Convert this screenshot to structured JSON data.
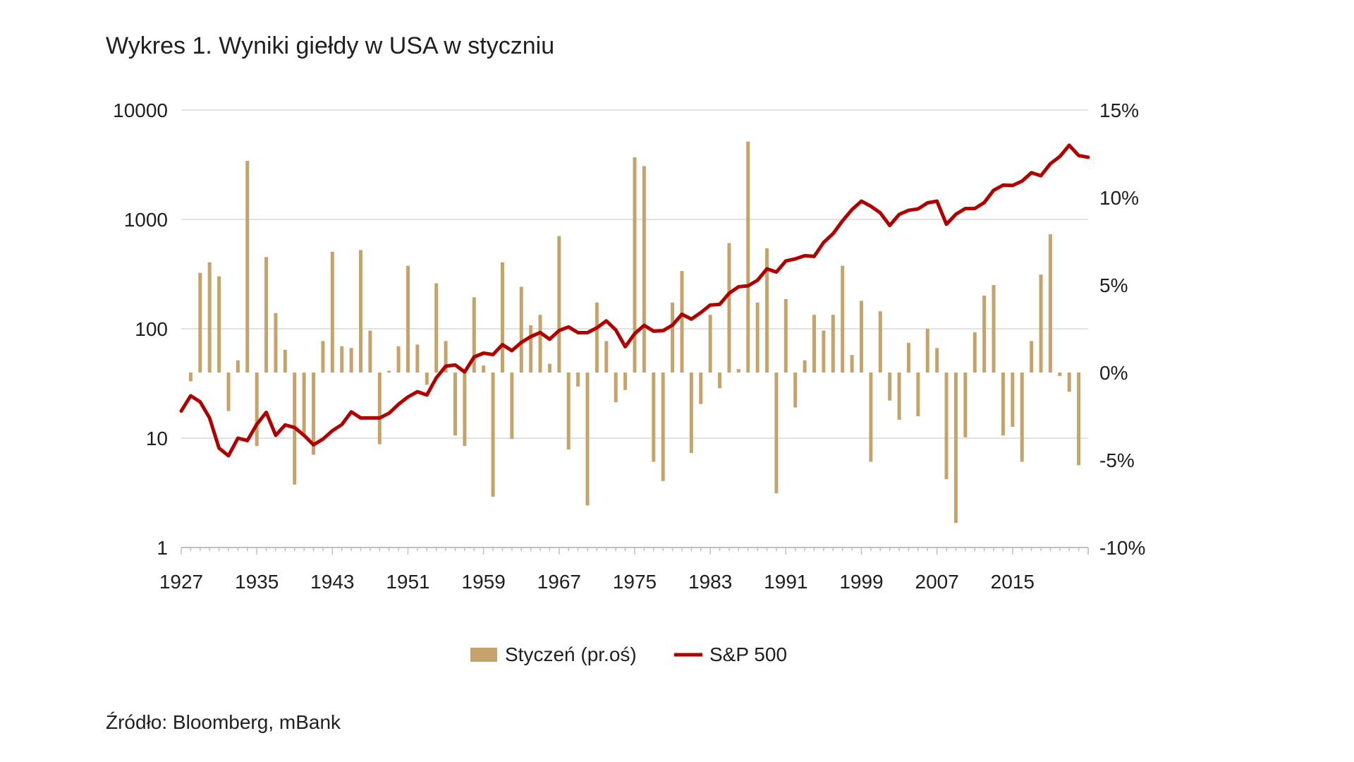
{
  "title": "Wykres 1. Wyniki giełdy w USA w styczniu",
  "source": "Źródło: Bloomberg, mBank",
  "colors": {
    "bars": "#C6A36A",
    "line": "#B00000",
    "grid": "#D9D9D9",
    "axis": "#BFBFBF"
  },
  "chart_data": {
    "type": "bar+line",
    "x_tick_labels": [
      "1927",
      "1935",
      "1943",
      "1951",
      "1959",
      "1967",
      "1975",
      "1983",
      "1991",
      "1999",
      "2007",
      "2015"
    ],
    "left_axis": {
      "scale": "log",
      "ylim": [
        1,
        10000
      ],
      "tick_labels": [
        "1",
        "10",
        "100",
        "1000",
        "10000"
      ],
      "tick_values": [
        1,
        10,
        100,
        1000,
        10000
      ]
    },
    "right_axis": {
      "scale": "linear",
      "ylim": [
        -10,
        15
      ],
      "tick_labels": [
        "-10%",
        "-5%",
        "0%",
        "5%",
        "10%",
        "15%"
      ],
      "tick_values": [
        -10,
        -5,
        0,
        5,
        10,
        15
      ]
    },
    "series": [
      {
        "name": "Styczeń (pr.oś)",
        "type": "bar",
        "axis": "right",
        "years": [
          1928,
          1929,
          1930,
          1931,
          1932,
          1933,
          1934,
          1935,
          1936,
          1937,
          1938,
          1939,
          1940,
          1941,
          1942,
          1943,
          1944,
          1945,
          1946,
          1947,
          1948,
          1949,
          1950,
          1951,
          1952,
          1953,
          1954,
          1955,
          1956,
          1957,
          1958,
          1959,
          1960,
          1961,
          1962,
          1963,
          1964,
          1965,
          1966,
          1967,
          1968,
          1969,
          1970,
          1971,
          1972,
          1973,
          1974,
          1975,
          1976,
          1977,
          1978,
          1979,
          1980,
          1981,
          1982,
          1983,
          1984,
          1985,
          1986,
          1987,
          1988,
          1989,
          1990,
          1991,
          1992,
          1993,
          1994,
          1995,
          1996,
          1997,
          1998,
          1999,
          2000,
          2001,
          2002,
          2003,
          2004,
          2005,
          2006,
          2007,
          2008,
          2009,
          2010,
          2011,
          2012,
          2013,
          2014,
          2015,
          2016,
          2017,
          2018,
          2019,
          2020,
          2021,
          2022
        ],
        "values": [
          -0.5,
          5.7,
          6.3,
          5.5,
          -2.2,
          0.7,
          12.1,
          -4.2,
          6.6,
          3.4,
          1.3,
          -6.4,
          -3.5,
          -4.7,
          1.8,
          6.9,
          1.5,
          1.4,
          7.0,
          2.4,
          -4.1,
          0.1,
          1.5,
          6.1,
          1.6,
          -0.7,
          5.1,
          1.8,
          -3.6,
          -4.2,
          4.3,
          0.4,
          -7.1,
          6.3,
          -3.8,
          4.9,
          2.7,
          3.3,
          0.5,
          7.8,
          -4.4,
          -0.8,
          -7.6,
          4.0,
          1.8,
          -1.7,
          -1.0,
          12.3,
          11.8,
          -5.1,
          -6.2,
          4.0,
          5.8,
          -4.6,
          -1.8,
          3.3,
          -0.9,
          7.4,
          0.2,
          13.2,
          4.0,
          7.1,
          -6.9,
          4.2,
          -2.0,
          0.7,
          3.3,
          2.4,
          3.3,
          6.1,
          1.0,
          4.1,
          -5.1,
          3.5,
          -1.6,
          -2.7,
          1.7,
          -2.5,
          2.5,
          1.4,
          -6.1,
          -8.6,
          -3.7,
          2.3,
          4.4,
          5.0,
          -3.6,
          -3.1,
          -5.1,
          1.8,
          5.6,
          7.9,
          -0.2,
          -1.1,
          -5.3
        ]
      },
      {
        "name": "S&P 500",
        "type": "line",
        "axis": "left",
        "years": [
          1927,
          1928,
          1929,
          1930,
          1931,
          1932,
          1933,
          1934,
          1935,
          1936,
          1937,
          1938,
          1939,
          1940,
          1941,
          1942,
          1943,
          1944,
          1945,
          1946,
          1947,
          1948,
          1949,
          1950,
          1951,
          1952,
          1953,
          1954,
          1955,
          1956,
          1957,
          1958,
          1959,
          1960,
          1961,
          1962,
          1963,
          1964,
          1965,
          1966,
          1967,
          1968,
          1969,
          1970,
          1971,
          1972,
          1973,
          1974,
          1975,
          1976,
          1977,
          1978,
          1979,
          1980,
          1981,
          1982,
          1983,
          1984,
          1985,
          1986,
          1987,
          1988,
          1989,
          1990,
          1991,
          1992,
          1993,
          1994,
          1995,
          1996,
          1997,
          1998,
          1999,
          2000,
          2001,
          2002,
          2003,
          2004,
          2005,
          2006,
          2007,
          2008,
          2009,
          2010,
          2011,
          2012,
          2013,
          2014,
          2015,
          2016,
          2017,
          2018,
          2019,
          2020,
          2021,
          2022,
          2023
        ],
        "values": [
          17.7,
          24.4,
          21.5,
          15.3,
          8.1,
          6.9,
          10.0,
          9.5,
          13.4,
          17.2,
          10.6,
          13.2,
          12.5,
          10.6,
          8.7,
          9.8,
          11.7,
          13.3,
          17.4,
          15.3,
          15.3,
          15.3,
          16.9,
          20.4,
          23.8,
          26.6,
          24.8,
          35.6,
          45.5,
          46.7,
          40.3,
          55.2,
          59.9,
          58.1,
          71.6,
          63.1,
          75.0,
          84.8,
          92.4,
          80.3,
          96.5,
          103.9,
          92.1,
          92.2,
          102.1,
          118.1,
          97.6,
          68.6,
          90.2,
          107.5,
          95.1,
          96.1,
          107.9,
          135.8,
          122.6,
          140.6,
          164.9,
          167.2,
          211.3,
          242.2,
          247.1,
          277.7,
          353.4,
          330.2,
          417.1,
          435.7,
          466.5,
          459.3,
          615.9,
          740.7,
          970.4,
          1229.2,
          1469.3,
          1320.3,
          1148.1,
          879.8,
          1111.9,
          1211.9,
          1248.3,
          1418.3,
          1468.4,
          903.3,
          1115.1,
          1257.6,
          1257.6,
          1426.2,
          1848.4,
          2058.9,
          2043.9,
          2238.8,
          2673.6,
          2506.9,
          3230.8,
          3756.1,
          4766.2,
          3839.5,
          3700.0
        ]
      }
    ],
    "legend": [
      {
        "label": "Styczeń (pr.oś)",
        "marker": "square"
      },
      {
        "label": "S&P 500",
        "marker": "line"
      }
    ],
    "legend_position": "bottom-center"
  }
}
